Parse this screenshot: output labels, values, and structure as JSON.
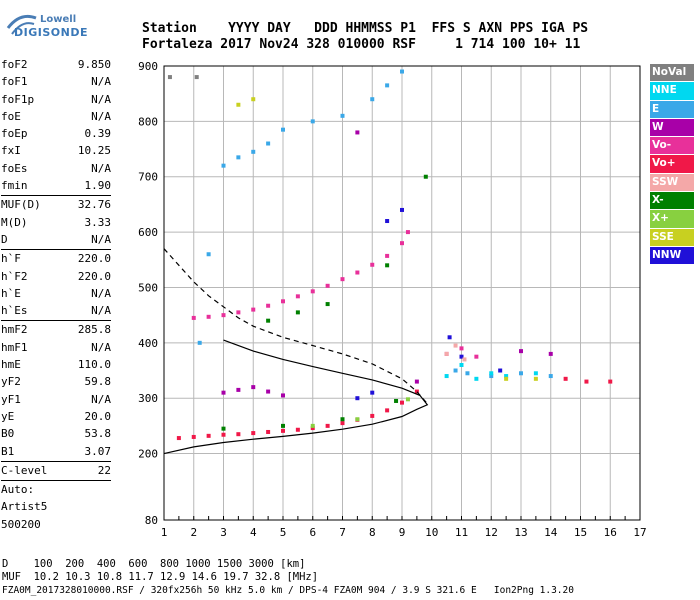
{
  "logo": {
    "brand_word": "Lowell",
    "brand_name": "DIGISONDE"
  },
  "header": {
    "line1": "Station    YYYY DAY   DDD HHMMSS P1  FFS S AXN PPS IGA PS",
    "line2": "Fortaleza 2017 Nov24 328 010000 RSF     1 714 100 10+ 11"
  },
  "params": [
    {
      "label": "foF2",
      "value": "9.850"
    },
    {
      "label": "foF1",
      "value": "N/A"
    },
    {
      "label": "foF1p",
      "value": "N/A"
    },
    {
      "label": "foE",
      "value": "N/A"
    },
    {
      "label": "foEp",
      "value": "0.39"
    },
    {
      "label": "fxI",
      "value": "10.25"
    },
    {
      "label": "foEs",
      "value": "N/A"
    },
    {
      "label": "fmin",
      "value": "1.90"
    },
    {
      "sep": true
    },
    {
      "label": "MUF(D)",
      "value": "32.76"
    },
    {
      "label": "M(D)",
      "value": "3.33"
    },
    {
      "label": "D",
      "value": "N/A"
    },
    {
      "sep": true
    },
    {
      "label": "h`F",
      "value": "220.0"
    },
    {
      "label": "h`F2",
      "value": "220.0"
    },
    {
      "label": "h`E",
      "value": "N/A"
    },
    {
      "label": "h`Es",
      "value": "N/A"
    },
    {
      "sep": true
    },
    {
      "label": "hmF2",
      "value": "285.8"
    },
    {
      "label": "hmF1",
      "value": "N/A"
    },
    {
      "label": "hmE",
      "value": "110.0"
    },
    {
      "label": "yF2",
      "value": "59.8"
    },
    {
      "label": "yF1",
      "value": "N/A"
    },
    {
      "label": "yE",
      "value": "20.0"
    },
    {
      "label": "B0",
      "value": "53.8"
    },
    {
      "label": "B1",
      "value": "3.07"
    },
    {
      "sep": true
    },
    {
      "label": "C-level",
      "value": "22"
    },
    {
      "sep": true
    },
    {
      "label": "Auto:",
      "value": ""
    },
    {
      "label": "Artist5",
      "value": ""
    },
    {
      "label": "500200",
      "value": ""
    }
  ],
  "footer": {
    "distance_row": "D    100  200  400  600  800 1000 1500 3000 [km]",
    "muf_row": "MUF  10.2 10.3 10.8 11.7 12.9 14.6 19.7 32.8 [MHz]",
    "info_row": "FZA0M_2017328010000.RSF / 320fx256h 50 kHz 5.0 km / DPS-4 FZA0M 904 / 3.9 S 321.6 E   Ion2Png 1.3.20"
  },
  "legend": [
    {
      "label": "NoVal",
      "color": "#808080"
    },
    {
      "label": "NNE",
      "color": "#00d8f0"
    },
    {
      "label": "E",
      "color": "#3aa8e8"
    },
    {
      "label": "W",
      "color": "#a800a8"
    },
    {
      "label": "Vo-",
      "color": "#e8309a"
    },
    {
      "label": "Vo+",
      "color": "#f01848"
    },
    {
      "label": "SSW",
      "color": "#f4a8a8"
    },
    {
      "label": "X-",
      "color": "#008000"
    },
    {
      "label": "X+",
      "color": "#88d040"
    },
    {
      "label": "SSE",
      "color": "#c8d020"
    },
    {
      "label": "NNW",
      "color": "#2010d8"
    }
  ],
  "chart_data": {
    "type": "scatter",
    "xlabel": "",
    "ylabel": "",
    "xlim": [
      1,
      17
    ],
    "ylim": [
      80,
      900
    ],
    "x_ticks": [
      1,
      2,
      3,
      4,
      5,
      6,
      7,
      8,
      9,
      10,
      11,
      12,
      13,
      14,
      15,
      16,
      17
    ],
    "y_ticks": [
      80,
      200,
      300,
      400,
      500,
      600,
      700,
      800,
      900
    ],
    "grid": true,
    "series": [
      {
        "name": "Vo+",
        "color": "#f01848",
        "points": [
          [
            1.5,
            228
          ],
          [
            2.0,
            230
          ],
          [
            2.5,
            232
          ],
          [
            3.0,
            234
          ],
          [
            3.5,
            235
          ],
          [
            4.0,
            237
          ],
          [
            4.5,
            239
          ],
          [
            5.0,
            241
          ],
          [
            5.5,
            243
          ],
          [
            6.0,
            246
          ],
          [
            6.5,
            250
          ],
          [
            7.0,
            255
          ],
          [
            7.5,
            261
          ],
          [
            8.0,
            268
          ],
          [
            8.5,
            278
          ],
          [
            9.0,
            292
          ],
          [
            9.5,
            312
          ],
          [
            14.5,
            335
          ],
          [
            15.2,
            330
          ],
          [
            16.0,
            330
          ]
        ]
      },
      {
        "name": "Vo-",
        "color": "#e8309a",
        "points": [
          [
            2.0,
            445
          ],
          [
            2.5,
            447
          ],
          [
            3.0,
            450
          ],
          [
            3.5,
            455
          ],
          [
            4.0,
            460
          ],
          [
            4.5,
            467
          ],
          [
            5.0,
            475
          ],
          [
            5.5,
            484
          ],
          [
            6.0,
            493
          ],
          [
            6.5,
            503
          ],
          [
            7.0,
            515
          ],
          [
            7.5,
            527
          ],
          [
            8.0,
            541
          ],
          [
            8.5,
            557
          ],
          [
            9.0,
            580
          ],
          [
            9.2,
            600
          ],
          [
            10.5,
            380
          ],
          [
            11.0,
            390
          ],
          [
            11.5,
            375
          ]
        ]
      },
      {
        "name": "X-",
        "color": "#008000",
        "points": [
          [
            4.5,
            440
          ],
          [
            5.5,
            455
          ],
          [
            6.5,
            470
          ],
          [
            8.5,
            540
          ],
          [
            3.0,
            245
          ],
          [
            5.0,
            250
          ],
          [
            7.0,
            262
          ],
          [
            8.8,
            295
          ],
          [
            9.8,
            700
          ]
        ]
      },
      {
        "name": "W",
        "color": "#a800a8",
        "points": [
          [
            3.0,
            310
          ],
          [
            3.5,
            315
          ],
          [
            4.0,
            320
          ],
          [
            4.5,
            312
          ],
          [
            5.0,
            305
          ],
          [
            9.5,
            330
          ],
          [
            13.0,
            385
          ],
          [
            14.0,
            380
          ],
          [
            7.5,
            780
          ]
        ]
      },
      {
        "name": "E",
        "color": "#3aa8e8",
        "points": [
          [
            2.5,
            560
          ],
          [
            3.0,
            720
          ],
          [
            3.5,
            735
          ],
          [
            4.0,
            745
          ],
          [
            4.5,
            760
          ],
          [
            5.0,
            785
          ],
          [
            6.0,
            800
          ],
          [
            7.0,
            810
          ],
          [
            8.0,
            840
          ],
          [
            8.5,
            865
          ],
          [
            9.0,
            890
          ],
          [
            10.8,
            350
          ],
          [
            11.2,
            345
          ],
          [
            12.0,
            340
          ],
          [
            13.0,
            345
          ],
          [
            14.0,
            340
          ],
          [
            2.2,
            400
          ]
        ]
      },
      {
        "name": "NNE",
        "color": "#00d8f0",
        "points": [
          [
            10.5,
            340
          ],
          [
            11.0,
            360
          ],
          [
            11.5,
            335
          ],
          [
            12.0,
            345
          ],
          [
            12.5,
            340
          ],
          [
            13.5,
            345
          ]
        ]
      },
      {
        "name": "NNW",
        "color": "#2010d8",
        "points": [
          [
            7.5,
            300
          ],
          [
            8.0,
            310
          ],
          [
            8.5,
            620
          ],
          [
            9.0,
            640
          ],
          [
            10.6,
            410
          ],
          [
            11.0,
            375
          ],
          [
            12.3,
            350
          ]
        ]
      },
      {
        "name": "SSW",
        "color": "#f4a8a8",
        "points": [
          [
            10.5,
            380
          ],
          [
            10.8,
            395
          ],
          [
            11.1,
            370
          ]
        ]
      },
      {
        "name": "SSE",
        "color": "#c8d020",
        "points": [
          [
            4.0,
            840
          ],
          [
            3.5,
            830
          ],
          [
            12.5,
            335
          ],
          [
            13.5,
            335
          ]
        ]
      },
      {
        "name": "X+",
        "color": "#88d040",
        "points": [
          [
            6.0,
            250
          ],
          [
            7.5,
            262
          ],
          [
            9.2,
            298
          ]
        ]
      },
      {
        "name": "NoVal",
        "color": "#808080",
        "points": [
          [
            1.2,
            880
          ],
          [
            2.1,
            880
          ]
        ]
      }
    ],
    "profile_curves": {
      "solid": [
        [
          1.0,
          200
        ],
        [
          2.0,
          212
        ],
        [
          3.0,
          220
        ],
        [
          4.0,
          226
        ],
        [
          5.0,
          231
        ],
        [
          6.0,
          237
        ],
        [
          7.0,
          244
        ],
        [
          8.0,
          253
        ],
        [
          9.0,
          267
        ],
        [
          9.5,
          280
        ],
        [
          9.85,
          288
        ],
        [
          9.6,
          305
        ],
        [
          9.0,
          318
        ],
        [
          8.0,
          333
        ],
        [
          7.0,
          345
        ],
        [
          6.0,
          357
        ],
        [
          5.0,
          370
        ],
        [
          4.0,
          385
        ],
        [
          3.0,
          405
        ]
      ],
      "dashed": [
        [
          1.0,
          570
        ],
        [
          1.5,
          540
        ],
        [
          2.0,
          510
        ],
        [
          2.5,
          485
        ],
        [
          3.0,
          465
        ],
        [
          3.5,
          445
        ],
        [
          4.0,
          430
        ],
        [
          5.0,
          410
        ],
        [
          6.0,
          395
        ],
        [
          7.0,
          380
        ],
        [
          8.0,
          362
        ],
        [
          9.0,
          335
        ],
        [
          9.5,
          312
        ],
        [
          9.85,
          290
        ]
      ]
    }
  }
}
